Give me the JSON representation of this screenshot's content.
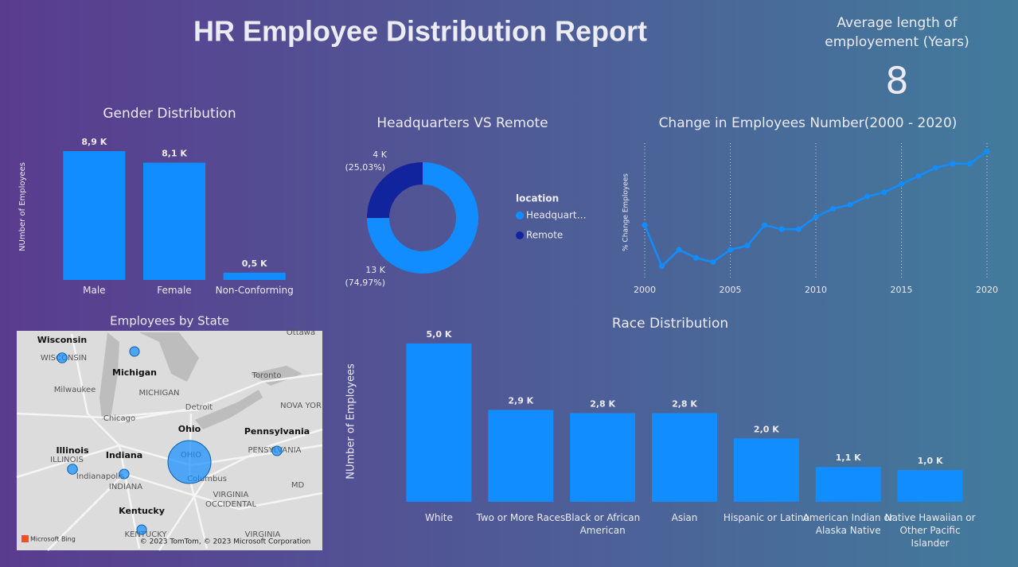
{
  "title": "HR Employee Distribution Report",
  "kpi": {
    "label": "Average length of employement (Years)",
    "value": 8
  },
  "chart_data": [
    {
      "type": "bar",
      "title": "Gender Distribution",
      "y_label": "NUmber of Employees",
      "categories": [
        "Male",
        "Female",
        "Non-Conforming"
      ],
      "values": [
        8900,
        8100,
        500
      ],
      "value_labels": [
        "8,9 K",
        "8,1 K",
        "0,5 K"
      ],
      "color": "#118dff",
      "ylim": [
        0,
        10000
      ]
    },
    {
      "type": "donut",
      "title": "Headquarters VS Remote",
      "legend_title": "location",
      "series": [
        {
          "name": "Headquart…",
          "color": "#118dff",
          "value": 74.97,
          "value_label": "(74,97%)",
          "count": 13000,
          "count_label": "13 K"
        },
        {
          "name": "Remote",
          "color": "#12239e",
          "value": 25.03,
          "value_label": "(25,03%)",
          "count": 4000,
          "count_label": "4 K"
        }
      ]
    },
    {
      "type": "line",
      "title": "Change in Employees Number(2000 - 2020)",
      "y_label": "% Change Employees",
      "x": [
        2000,
        2001,
        2002,
        2003,
        2004,
        2005,
        2006,
        2007,
        2008,
        2009,
        2010,
        2011,
        2012,
        2013,
        2014,
        2015,
        2016,
        2017,
        2018,
        2019,
        2020
      ],
      "values": [
        0,
        -10,
        -6,
        -8,
        -9,
        -6,
        -5,
        0,
        -1,
        -1,
        2,
        4,
        5,
        7,
        8,
        10,
        12,
        14,
        15,
        15,
        18
      ],
      "color": "#118dff",
      "xlim": [
        2000,
        2020
      ],
      "xticks": [
        2000,
        2005,
        2010,
        2015,
        2020
      ],
      "ylim": [
        -12,
        20
      ],
      "grid": true
    },
    {
      "type": "bar",
      "title": "Race Distribution",
      "y_label": "NUmber of Employees",
      "categories": [
        "White",
        "Two or More Races",
        "Black or African American",
        "Asian",
        "Hispanic or Latino",
        "American Indian or Alaska Native",
        "Native Hawaiian or Other Pacific Islander"
      ],
      "values": [
        5000,
        2900,
        2800,
        2800,
        2000,
        1100,
        1000
      ],
      "value_labels": [
        "5,0 K",
        "2,9 K",
        "2,8 K",
        "2,8 K",
        "2,0 K",
        "1,1 K",
        "1,0 K"
      ],
      "color": "#118dff",
      "ylim": [
        0,
        5500
      ]
    },
    {
      "type": "map",
      "title": "Employees by State",
      "categories": [
        "Wisconsin",
        "Michigan",
        "Illinois",
        "Indiana",
        "Ohio",
        "Kentucky",
        "Pennsylvania"
      ],
      "values": [
        700,
        650,
        700,
        650,
        13000,
        650,
        650
      ],
      "color": "#118dff",
      "place_labels": [
        "WISCONSIN",
        "Milwaukee",
        "MICHIGAN",
        "Chicago",
        "Detroit",
        "Toronto",
        "NOVA YOR",
        "ILLINOIS",
        "Indianapolis",
        "INDIANA",
        "OHIO",
        "Columbus",
        "PENSYLVANIA",
        "MD",
        "VIRGINIA",
        "OCCIDENTAL",
        "KENTUCKY",
        "VIRGINIA",
        "Ottawa"
      ],
      "logo": "Microsoft Bing",
      "attribution": "© 2023 TomTom, © 2023 Microsoft Corporation"
    }
  ]
}
